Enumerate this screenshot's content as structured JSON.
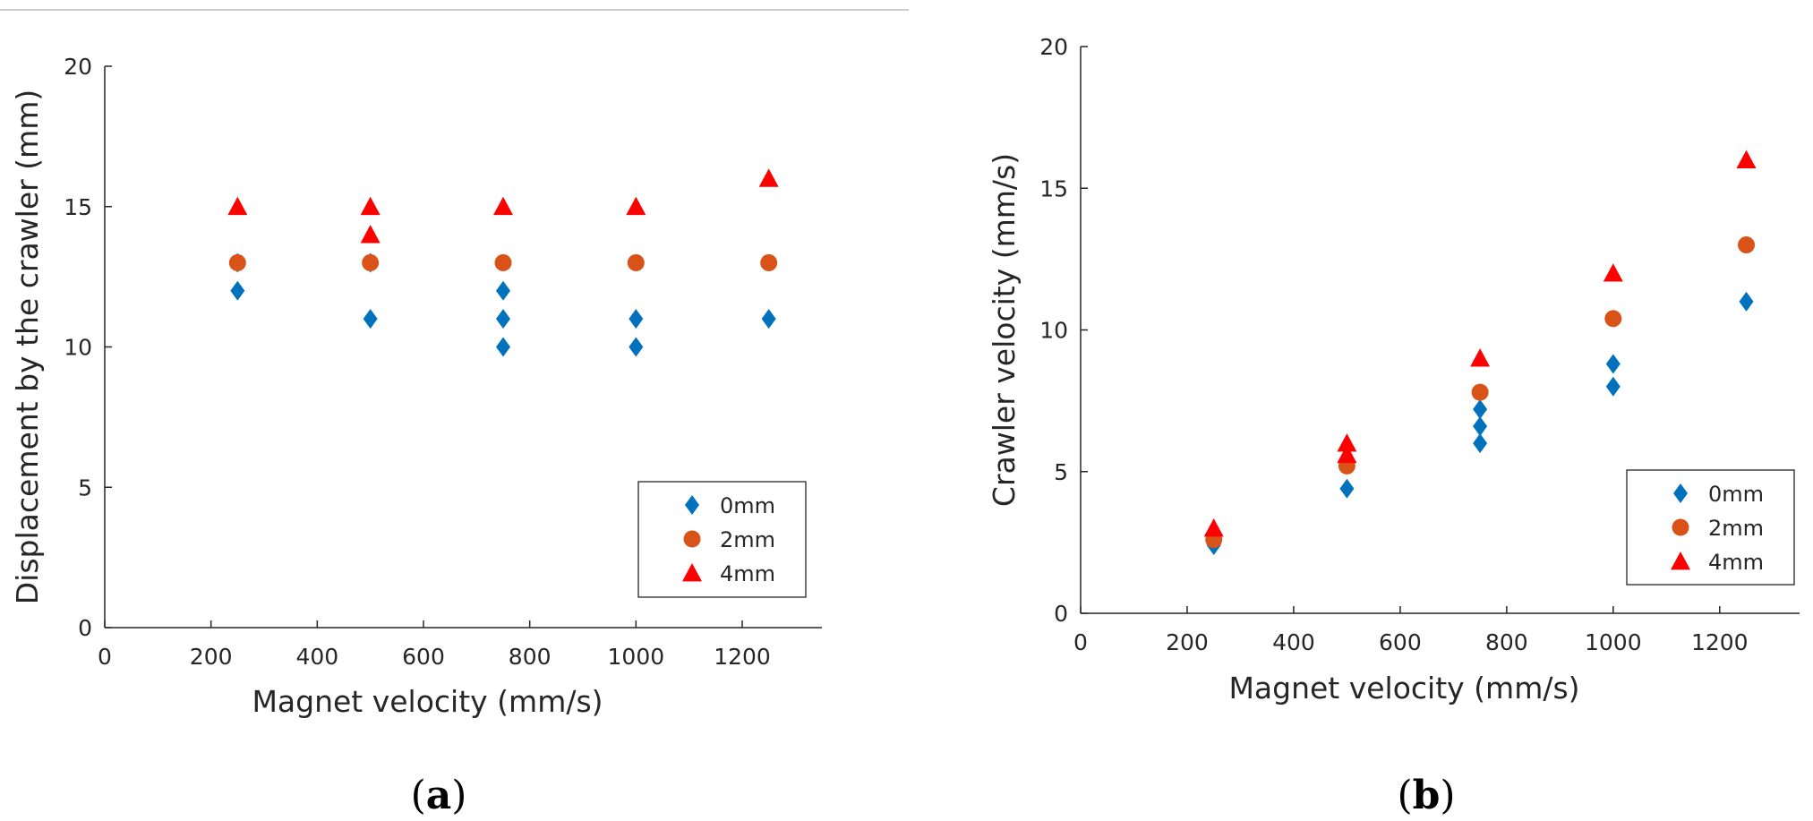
{
  "chart_data": [
    {
      "type": "scatter",
      "caption_open": "(",
      "caption_letter": "a",
      "caption_close": ")",
      "xlabel": "Magnet velocity (mm/s)",
      "ylabel": "Displacement by the crawler (mm)",
      "xlim": [
        0,
        1350
      ],
      "ylim": [
        0,
        20
      ],
      "xticks": [
        0,
        200,
        400,
        600,
        800,
        1000,
        1200
      ],
      "yticks": [
        0,
        5,
        10,
        15,
        20
      ],
      "legend_position": "bottom-right",
      "series": [
        {
          "name": "0mm",
          "marker": "diamond",
          "color": "#0072BD",
          "x": [
            250,
            250,
            500,
            500,
            750,
            750,
            750,
            1000,
            1000,
            1250
          ],
          "y": [
            12,
            13,
            11,
            13,
            12,
            11,
            10,
            11,
            10,
            11
          ]
        },
        {
          "name": "2mm",
          "marker": "circle",
          "color": "#D95319",
          "x": [
            250,
            500,
            750,
            1000,
            1250
          ],
          "y": [
            13,
            13,
            13,
            13,
            13
          ]
        },
        {
          "name": "4mm",
          "marker": "triangle",
          "color": "#FF0000",
          "x": [
            250,
            500,
            500,
            750,
            1000,
            1250
          ],
          "y": [
            15,
            15,
            14,
            15,
            15,
            16
          ]
        }
      ]
    },
    {
      "type": "scatter",
      "caption_open": "(",
      "caption_letter": "b",
      "caption_close": ")",
      "xlabel": "Magnet velocity (mm/s)",
      "ylabel": "Crawler velocity (mm/s)",
      "xlim": [
        0,
        1350
      ],
      "ylim": [
        0,
        20
      ],
      "xticks": [
        0,
        200,
        400,
        600,
        800,
        1000,
        1200
      ],
      "yticks": [
        0,
        5,
        10,
        15,
        20
      ],
      "legend_position": "bottom-right",
      "series": [
        {
          "name": "0mm",
          "marker": "diamond",
          "color": "#0072BD",
          "x": [
            250,
            250,
            500,
            500,
            750,
            750,
            750,
            1000,
            1000,
            1250
          ],
          "y": [
            2.4,
            2.6,
            4.4,
            5.4,
            6.0,
            6.6,
            7.2,
            8.0,
            8.8,
            11.0
          ]
        },
        {
          "name": "2mm",
          "marker": "circle",
          "color": "#D95319",
          "x": [
            250,
            500,
            750,
            1000,
            1250
          ],
          "y": [
            2.6,
            5.2,
            7.8,
            10.4,
            13.0
          ]
        },
        {
          "name": "4mm",
          "marker": "triangle",
          "color": "#FF0000",
          "x": [
            250,
            500,
            500,
            750,
            1000,
            1250
          ],
          "y": [
            3.0,
            6.0,
            5.6,
            9.0,
            12.0,
            16.0
          ]
        }
      ]
    }
  ]
}
